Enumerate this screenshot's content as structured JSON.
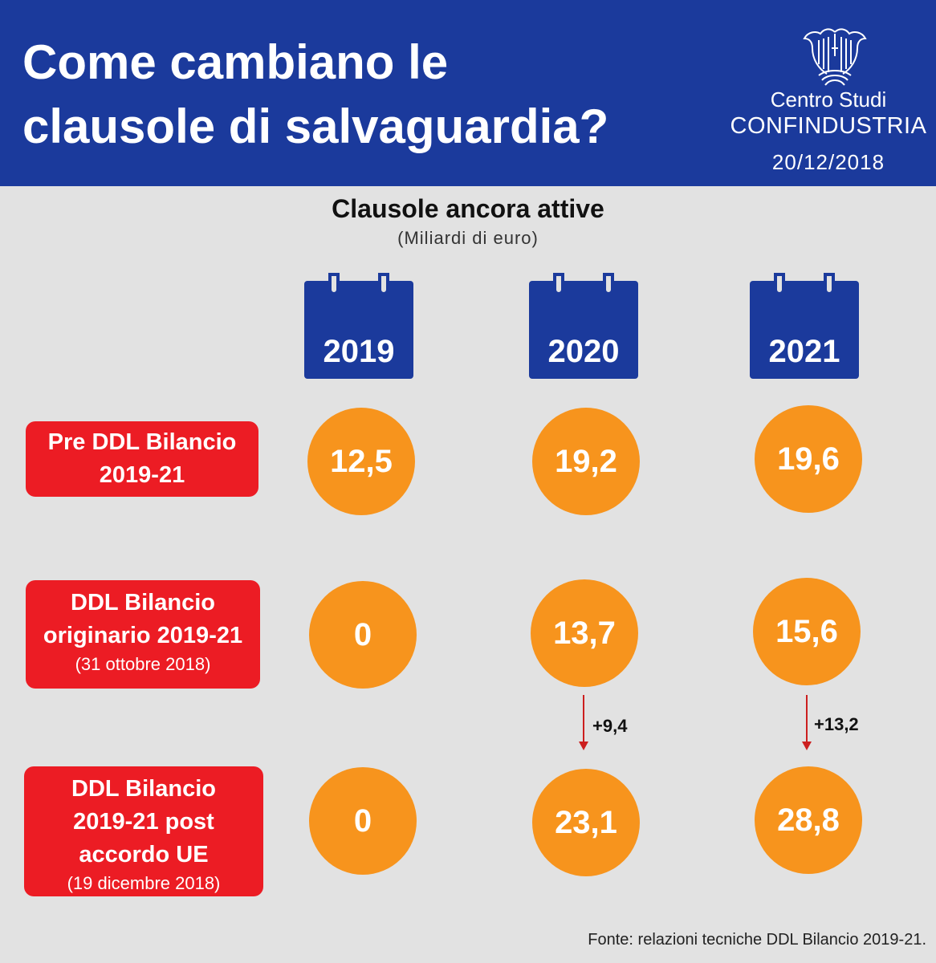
{
  "header": {
    "title_line1": "Come cambiano le",
    "title_line2": "clausole di salvaguardia?",
    "org_line1": "Centro Studi",
    "org_line2": "CONFINDUSTRIA",
    "date": "20/12/2018"
  },
  "subtitle": "Clausole ancora attive",
  "units": "(Miliardi di euro)",
  "years": [
    "2019",
    "2020",
    "2021"
  ],
  "rows": [
    {
      "label_main": "Pre DDL Bilancio 2019-21",
      "label_sub": "",
      "values": [
        "12,5",
        "19,2",
        "19,6"
      ]
    },
    {
      "label_main": "DDL Bilancio originario 2019-21",
      "label_sub": "(31 ottobre 2018)",
      "values": [
        "0",
        "13,7",
        "15,6"
      ]
    },
    {
      "label_main": "DDL Bilancio 2019-21 post accordo UE",
      "label_sub": "(19 dicembre 2018)",
      "values": [
        "0",
        "23,1",
        "28,8"
      ]
    }
  ],
  "deltas": [
    "+9,4",
    "+13,2"
  ],
  "source": "Fonte: relazioni tecniche DDL Bilancio 2019-21.",
  "colors": {
    "header_blue": "#1b3a9c",
    "label_red": "#ec1c24",
    "circle_orange": "#f7941d",
    "background": "#e2e2e2"
  }
}
